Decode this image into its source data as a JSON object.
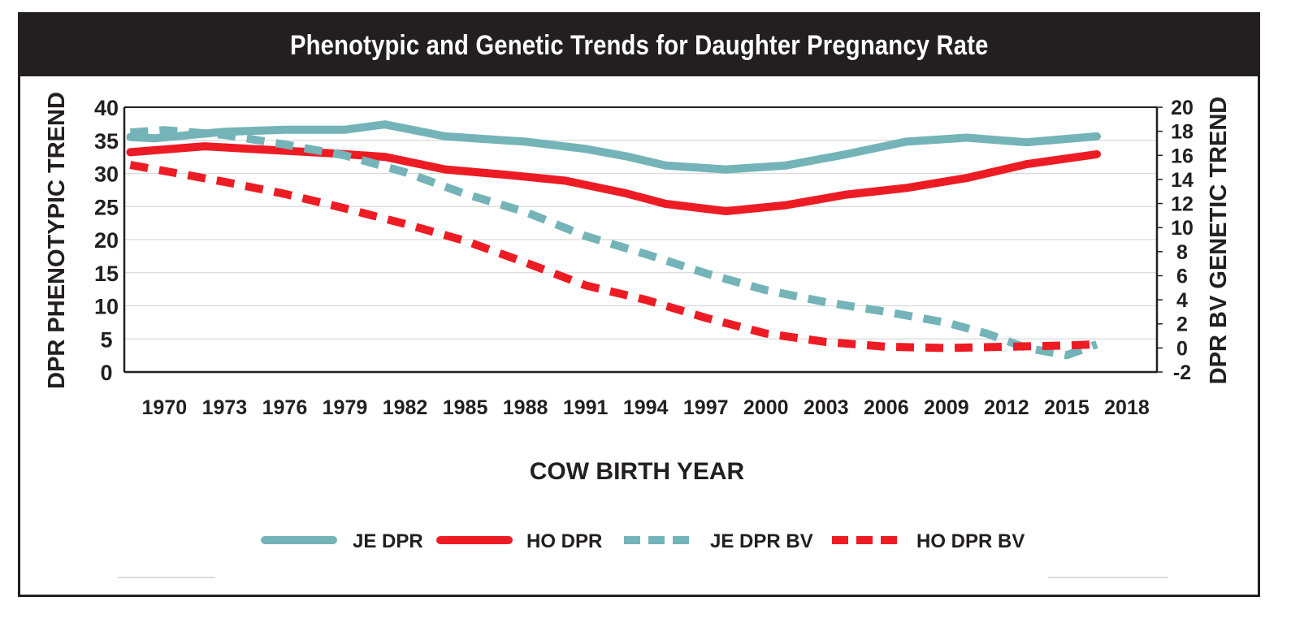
{
  "chart_data": {
    "type": "line",
    "title": "Phenotypic and Genetic Trends for Daughter Pregnancy Rate",
    "xlabel": "COW BIRTH YEAR",
    "ylabel_left": "DPR PHENOTYPIC TREND",
    "ylabel_right": "DPR BV GENETIC TREND",
    "xlim": [
      1968,
      2019.5
    ],
    "ylim_left": [
      0,
      40
    ],
    "ylim_right": [
      -2,
      20
    ],
    "x_ticks": [
      "1970",
      "1973",
      "1976",
      "1979",
      "1982",
      "1985",
      "1988",
      "1991",
      "1994",
      "1997",
      "2000",
      "2003",
      "2006",
      "2009",
      "2012",
      "2015",
      "2018"
    ],
    "y_ticks_left": [
      "0",
      "5",
      "10",
      "15",
      "20",
      "25",
      "30",
      "35",
      "40"
    ],
    "y_ticks_right": [
      "-2",
      "0",
      "2",
      "4",
      "6",
      "8",
      "10",
      "12",
      "14",
      "16",
      "18",
      "20"
    ],
    "grid": true,
    "legend_position": "bottom",
    "series": [
      {
        "name": "JE DPR",
        "axis": "left",
        "style": "solid",
        "color": "#74b4b8",
        "points": [
          [
            1968.3,
            35.5
          ],
          [
            1969.5,
            35.3
          ],
          [
            1973.0,
            36.3
          ],
          [
            1976.0,
            36.6
          ],
          [
            1979.0,
            36.6
          ],
          [
            1981.0,
            37.4
          ],
          [
            1984.0,
            35.6
          ],
          [
            1988.0,
            34.8
          ],
          [
            1991.0,
            33.7
          ],
          [
            1993.0,
            32.6
          ],
          [
            1995.0,
            31.2
          ],
          [
            1998.0,
            30.6
          ],
          [
            2001.0,
            31.2
          ],
          [
            2004.0,
            32.9
          ],
          [
            2007.0,
            34.8
          ],
          [
            2010.0,
            35.4
          ],
          [
            2013.0,
            34.7
          ],
          [
            2016.5,
            35.6
          ]
        ]
      },
      {
        "name": "HO DPR",
        "axis": "left",
        "style": "solid",
        "color": "#ed1c24",
        "points": [
          [
            1968.3,
            33.2
          ],
          [
            1972.0,
            34.1
          ],
          [
            1975.0,
            33.6
          ],
          [
            1978.0,
            33.1
          ],
          [
            1981.0,
            32.5
          ],
          [
            1984.0,
            30.6
          ],
          [
            1987.0,
            29.8
          ],
          [
            1990.0,
            28.9
          ],
          [
            1993.0,
            27.0
          ],
          [
            1995.0,
            25.4
          ],
          [
            1998.0,
            24.3
          ],
          [
            2001.0,
            25.2
          ],
          [
            2004.0,
            26.8
          ],
          [
            2007.0,
            27.8
          ],
          [
            2010.0,
            29.3
          ],
          [
            2013.0,
            31.4
          ],
          [
            2016.5,
            32.9
          ]
        ]
      },
      {
        "name": "JE DPR BV",
        "axis": "right",
        "style": "dashed",
        "color": "#74b4b8",
        "points": [
          [
            1968.3,
            17.9
          ],
          [
            1970.0,
            18.1
          ],
          [
            1973.0,
            17.7
          ],
          [
            1976.0,
            16.9
          ],
          [
            1979.0,
            16.0
          ],
          [
            1982.0,
            14.6
          ],
          [
            1985.0,
            12.8
          ],
          [
            1988.0,
            11.3
          ],
          [
            1991.0,
            9.3
          ],
          [
            1994.0,
            7.8
          ],
          [
            1997.0,
            6.2
          ],
          [
            2000.0,
            4.8
          ],
          [
            2003.0,
            3.8
          ],
          [
            2006.0,
            3.0
          ],
          [
            2009.0,
            2.1
          ],
          [
            2011.0,
            1.2
          ],
          [
            2013.0,
            0.0
          ],
          [
            2015.0,
            -0.6
          ],
          [
            2016.5,
            0.3
          ]
        ]
      },
      {
        "name": "HO DPR BV",
        "axis": "right",
        "style": "dashed",
        "color": "#ed1c24",
        "points": [
          [
            1968.3,
            15.2
          ],
          [
            1970.0,
            14.7
          ],
          [
            1973.0,
            13.8
          ],
          [
            1976.0,
            12.8
          ],
          [
            1979.0,
            11.6
          ],
          [
            1982.0,
            10.3
          ],
          [
            1985.0,
            8.9
          ],
          [
            1988.0,
            7.1
          ],
          [
            1991.0,
            5.2
          ],
          [
            1994.0,
            4.0
          ],
          [
            1997.0,
            2.5
          ],
          [
            2000.0,
            1.2
          ],
          [
            2003.0,
            0.5
          ],
          [
            2006.0,
            0.1
          ],
          [
            2009.0,
            0.0
          ],
          [
            2012.0,
            0.1
          ],
          [
            2015.0,
            0.2
          ],
          [
            2016.5,
            0.3
          ]
        ]
      }
    ]
  }
}
